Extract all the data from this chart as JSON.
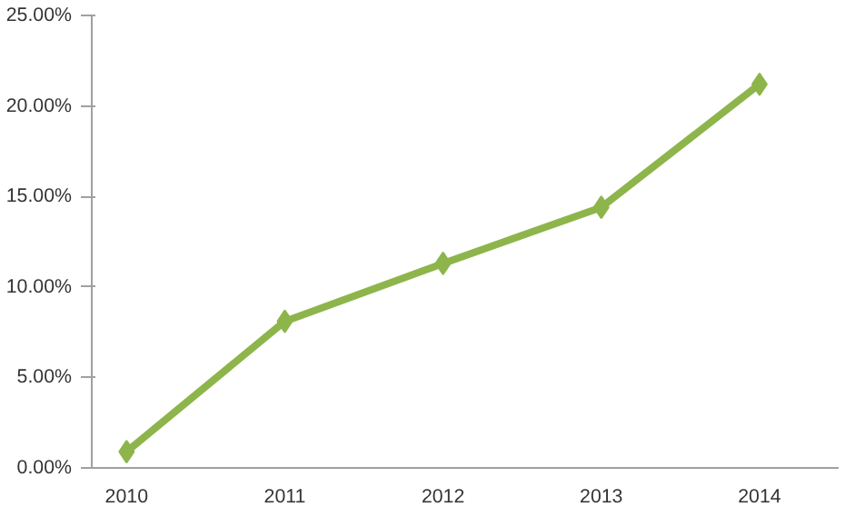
{
  "chart_data": {
    "type": "line",
    "categories": [
      "2010",
      "2011",
      "2012",
      "2013",
      "2014"
    ],
    "series": [
      {
        "color": "#8db54b",
        "values": [
          0.9,
          8.1,
          11.3,
          14.4,
          21.2
        ]
      }
    ],
    "ylim": [
      0,
      25
    ],
    "yticks": [
      {
        "value": 0,
        "label": "0.00%"
      },
      {
        "value": 5,
        "label": "5.00%"
      },
      {
        "value": 10,
        "label": "10.00%"
      },
      {
        "value": 15,
        "label": "15.00%"
      },
      {
        "value": 20,
        "label": "20.00%"
      },
      {
        "value": 25,
        "label": "25.00%"
      }
    ],
    "grid": false,
    "marker": "diamond",
    "line_style": "solid"
  }
}
